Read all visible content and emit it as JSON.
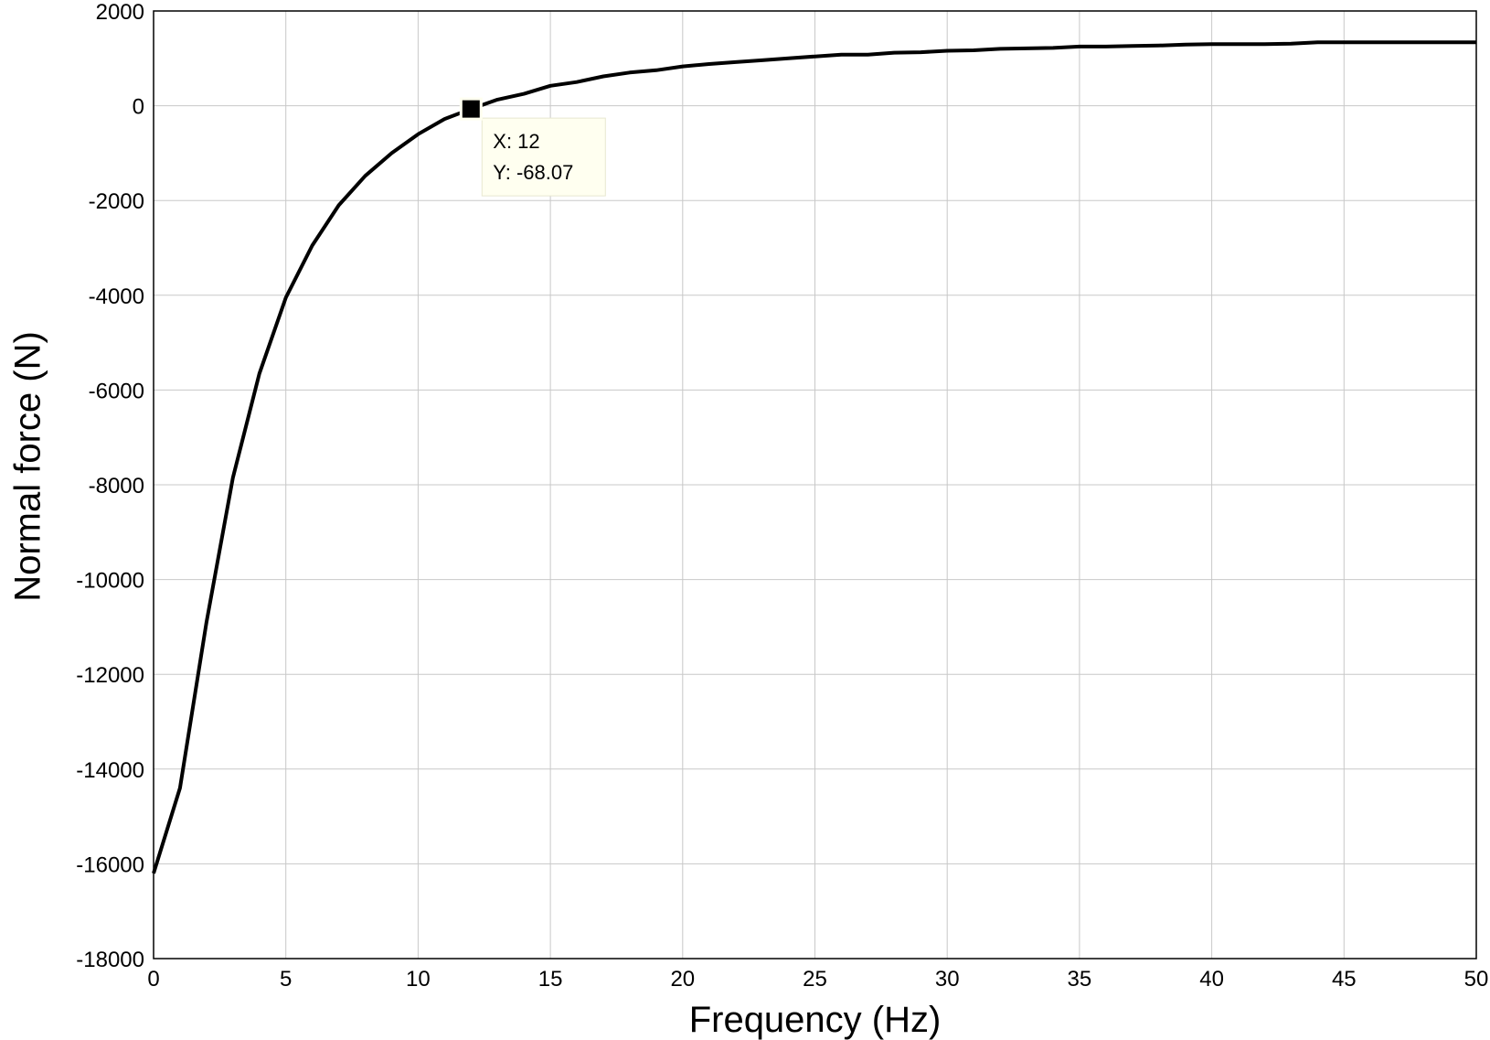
{
  "chart_data": {
    "type": "line",
    "xlabel": "Frequency (Hz)",
    "ylabel": "Normal force (N)",
    "xlim": [
      0,
      50
    ],
    "ylim": [
      -18000,
      2000
    ],
    "xticks": [
      0,
      5,
      10,
      15,
      20,
      25,
      30,
      35,
      40,
      45,
      50
    ],
    "yticks": [
      2000,
      0,
      -2000,
      -4000,
      -6000,
      -8000,
      -10000,
      -12000,
      -14000,
      -16000,
      -18000
    ],
    "grid": true,
    "line_color": "#000000",
    "series": [
      {
        "x": [
          0,
          1,
          2,
          3,
          4,
          5,
          6,
          7,
          8,
          9,
          10,
          11,
          12,
          13,
          14,
          15,
          16,
          17,
          18,
          19,
          20,
          21,
          22,
          23,
          24,
          25,
          26,
          27,
          28,
          29,
          30,
          31,
          32,
          33,
          34,
          35,
          36,
          37,
          38,
          39,
          40,
          41,
          42,
          43,
          44,
          45,
          46,
          47,
          48,
          49,
          50
        ],
        "y": [
          -16200,
          -14400,
          -10900,
          -7850,
          -5650,
          -4050,
          -2950,
          -2100,
          -1480,
          -1000,
          -600,
          -280,
          -68.07,
          130,
          250,
          420,
          500,
          620,
          700,
          750,
          830,
          880,
          920,
          960,
          1000,
          1040,
          1080,
          1080,
          1120,
          1130,
          1160,
          1170,
          1200,
          1210,
          1220,
          1250,
          1250,
          1260,
          1270,
          1290,
          1300,
          1300,
          1300,
          1310,
          1340,
          1340,
          1340,
          1340,
          1340,
          1340,
          1340
        ]
      }
    ],
    "datatip": {
      "x": 12,
      "y": -68.07,
      "x_text": "X: 12",
      "y_text": "Y: -68.07"
    }
  }
}
